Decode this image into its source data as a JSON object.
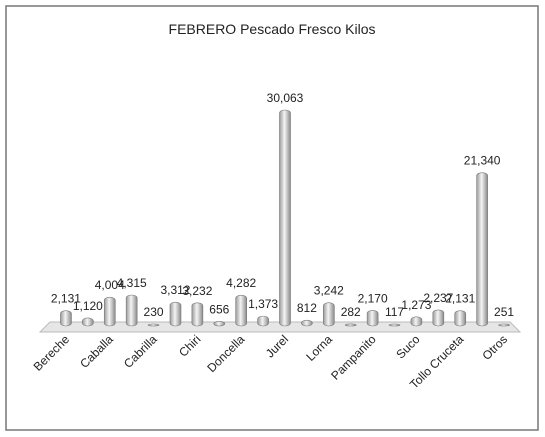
{
  "chart_data": {
    "type": "bar",
    "title": "FEBRERO Pescado Fresco Kilos",
    "categories": [
      "Bereche",
      null,
      "Caballa",
      null,
      "Cabrilla",
      null,
      "Chiri",
      null,
      "Doncella",
      null,
      "Jurel",
      null,
      "Lorna",
      null,
      "Pampanito",
      null,
      "Suco",
      null,
      "Tollo Cruceta",
      null,
      "Otros"
    ],
    "values": [
      2131,
      1120,
      4004,
      4315,
      230,
      3312,
      3232,
      656,
      4282,
      1373,
      30063,
      812,
      3242,
      282,
      2170,
      117,
      1273,
      2237,
      2131,
      21340,
      251
    ],
    "value_labels": [
      "2,131",
      "1,120",
      "4,004",
      "4,315",
      "230",
      "3,312",
      "3,232",
      "656",
      "4,282",
      "1,373",
      "30,063",
      "812",
      "3,242",
      "282",
      "2,170",
      "117",
      "1,273",
      "2,237",
      "2,131",
      "21,340",
      "251"
    ],
    "color": "#d9d9d9"
  }
}
